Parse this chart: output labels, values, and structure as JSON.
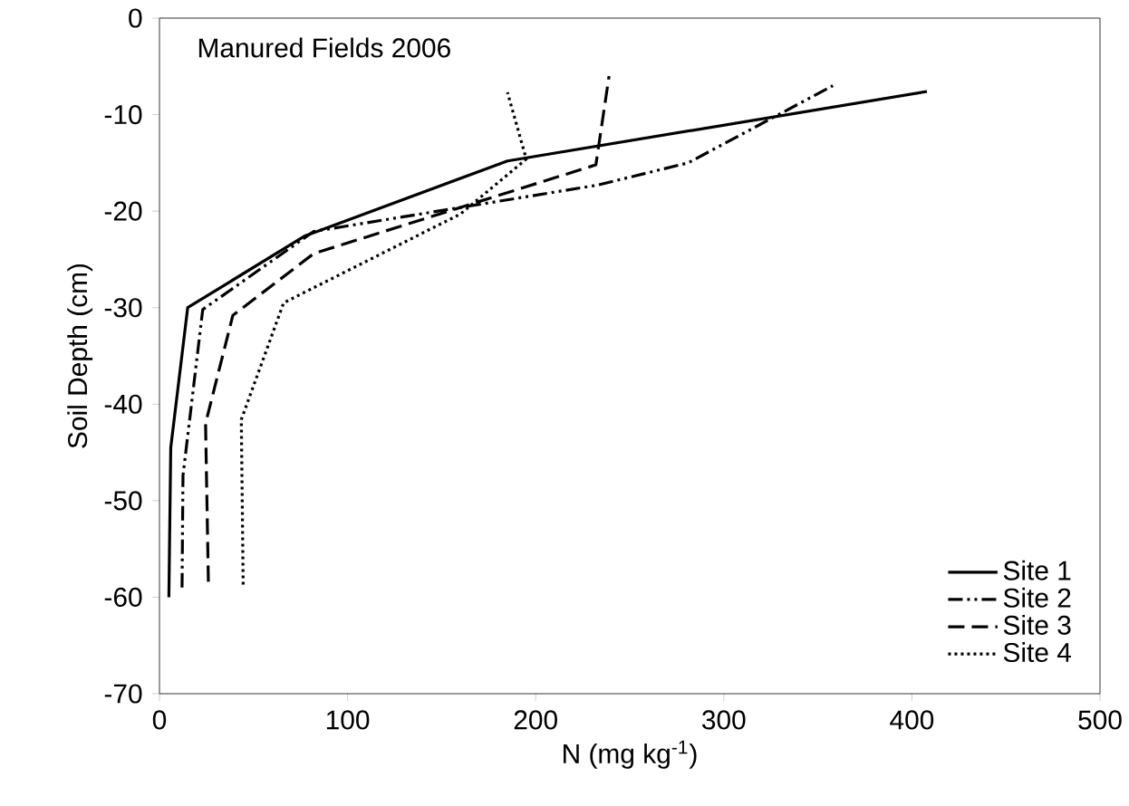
{
  "chart_data": {
    "type": "line",
    "title": "Manured Fields 2006",
    "xlabel": "N (mg kg$^{-1}$)",
    "ylabel": "Soil Depth (cm)",
    "xlim": [
      0,
      500
    ],
    "xticks": [
      0,
      100,
      200,
      300,
      400,
      500
    ],
    "ylim": [
      -70,
      0
    ],
    "yticks": [
      -70,
      -60,
      -50,
      -40,
      -30,
      -20,
      -10,
      0
    ],
    "grid": false,
    "legend": "bottom right",
    "marker": "none",
    "series": [
      {
        "name": "Site 1",
        "color": "#000000",
        "line_style": "solid",
        "x": [
          5,
          6,
          15,
          77,
          185,
          408
        ],
        "values": [
          -60,
          -44.5,
          -30,
          -22.6,
          -14.8,
          -7.6
        ]
      },
      {
        "name": "Site 2",
        "color": "#000000",
        "line_style": "dashdotdotted",
        "x": [
          12,
          12.5,
          23,
          82,
          233,
          281,
          358
        ],
        "values": [
          -59,
          -47.4,
          -30.2,
          -22.1,
          -17.3,
          -15,
          -7
        ]
      },
      {
        "name": "Site 3",
        "color": "#000000",
        "line_style": "dashed",
        "x": [
          26,
          24.5,
          39,
          82,
          232,
          239
        ],
        "values": [
          -58.4,
          -42,
          -30.8,
          -24.4,
          -15.2,
          -6
        ]
      },
      {
        "name": "Site 4",
        "color": "#000000",
        "line_style": "dotted",
        "x": [
          44.5,
          43.5,
          66,
          160,
          195,
          185
        ],
        "values": [
          -58.7,
          -41.6,
          -29.5,
          -20.3,
          -14.6,
          -7.7
        ]
      }
    ]
  }
}
